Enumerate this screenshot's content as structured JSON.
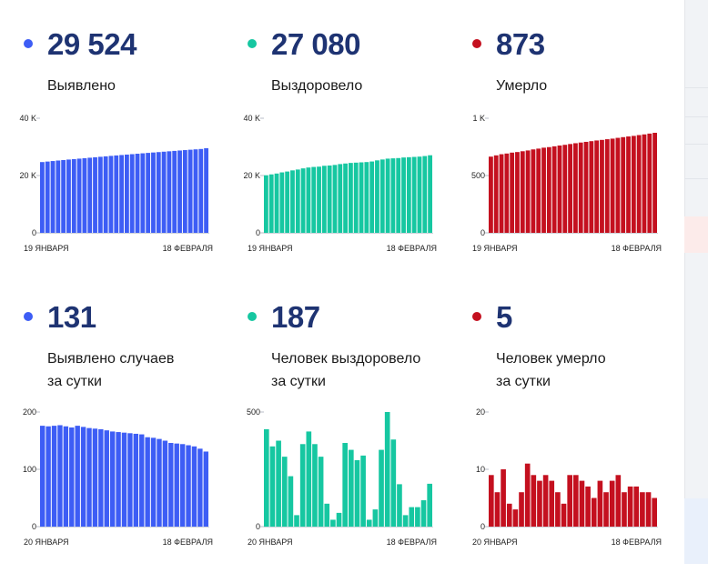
{
  "colors": {
    "blue": "#3d5df5",
    "teal": "#16c7a1",
    "red": "#c4101f",
    "number": "#1e3372"
  },
  "tiles": [
    {
      "value": "29 524",
      "label_lines": [
        "Выявлено"
      ],
      "color": "#3d5df5",
      "icon": "blue-dot-icon"
    },
    {
      "value": "27 080",
      "label_lines": [
        "Выздоровело"
      ],
      "color": "#16c7a1",
      "icon": "teal-dot-icon"
    },
    {
      "value": "873",
      "label_lines": [
        "Умерло"
      ],
      "color": "#c4101f",
      "icon": "red-dot-icon"
    },
    {
      "value": "131",
      "label_lines": [
        "Выявлено случаев",
        "за сутки"
      ],
      "color": "#3d5df5",
      "icon": "blue-dot-icon"
    },
    {
      "value": "187",
      "label_lines": [
        "Человек выздоровело",
        "за сутки"
      ],
      "color": "#16c7a1",
      "icon": "teal-dot-icon"
    },
    {
      "value": "5",
      "label_lines": [
        "Человек умерло",
        "за сутки"
      ],
      "color": "#c4101f",
      "icon": "red-dot-icon"
    }
  ],
  "chart_data": [
    {
      "type": "bar",
      "color": "#3d5df5",
      "x_start_label": "19 ЯНВАРЯ",
      "x_end_label": "18 ФЕВРАЛЯ",
      "ylim": [
        0,
        40000
      ],
      "yticks": [
        0,
        20000,
        40000
      ],
      "ytick_labels": [
        "0",
        "20 K",
        "40 K"
      ],
      "values": [
        24700,
        24880,
        25060,
        25240,
        25410,
        25580,
        25740,
        25900,
        26060,
        26220,
        26380,
        26540,
        26700,
        26860,
        27010,
        27160,
        27310,
        27460,
        27610,
        27760,
        27900,
        28040,
        28180,
        28320,
        28460,
        28600,
        28740,
        28880,
        29010,
        29140,
        29270,
        29524
      ]
    },
    {
      "type": "bar",
      "color": "#16c7a1",
      "x_start_label": "19 ЯНВАРЯ",
      "x_end_label": "18 ФЕВРАЛЯ",
      "ylim": [
        0,
        40000
      ],
      "yticks": [
        0,
        20000,
        40000
      ],
      "ytick_labels": [
        "0",
        "20 K",
        "40 K"
      ],
      "values": [
        20100,
        20400,
        20700,
        21100,
        21400,
        21800,
        22100,
        22500,
        22800,
        23000,
        23100,
        23400,
        23500,
        23700,
        24000,
        24200,
        24400,
        24500,
        24600,
        24700,
        24900,
        25300,
        25600,
        25900,
        26000,
        26100,
        26300,
        26400,
        26500,
        26600,
        26800,
        27080
      ]
    },
    {
      "type": "bar",
      "color": "#c4101f",
      "x_start_label": "19 ЯНВАРЯ",
      "x_end_label": "18 ФЕВРАЛЯ",
      "ylim": [
        0,
        1000
      ],
      "yticks": [
        0,
        500,
        1000
      ],
      "ytick_labels": [
        "0",
        "500",
        "1 K"
      ],
      "values": [
        665,
        676,
        686,
        692,
        700,
        705,
        712,
        719,
        728,
        735,
        743,
        748,
        755,
        762,
        768,
        775,
        782,
        788,
        794,
        800,
        806,
        811,
        817,
        822,
        829,
        835,
        841,
        846,
        853,
        859,
        866,
        873
      ]
    },
    {
      "type": "bar",
      "color": "#3d5df5",
      "x_start_label": "20 ЯНВАРЯ",
      "x_end_label": "18 ФЕВРАЛЯ",
      "ylim": [
        0,
        200
      ],
      "yticks": [
        0,
        100,
        200
      ],
      "ytick_labels": [
        "0",
        "100",
        "200"
      ],
      "values": [
        176,
        175,
        176,
        177,
        175,
        173,
        176,
        174,
        172,
        171,
        170,
        168,
        166,
        165,
        164,
        163,
        162,
        161,
        156,
        155,
        153,
        150,
        146,
        145,
        144,
        142,
        140,
        136,
        131
      ]
    },
    {
      "type": "bar",
      "color": "#16c7a1",
      "x_start_label": "20 ЯНВАРЯ",
      "x_end_label": "18 ФЕВРАЛЯ",
      "ylim": [
        0,
        500
      ],
      "yticks": [
        0,
        500
      ],
      "ytick_labels": [
        "0",
        "500"
      ],
      "values": [
        425,
        350,
        375,
        305,
        220,
        50,
        360,
        415,
        360,
        305,
        100,
        30,
        60,
        365,
        335,
        290,
        310,
        30,
        75,
        335,
        500,
        380,
        185,
        50,
        85,
        85,
        115,
        187
      ]
    },
    {
      "type": "bar",
      "color": "#c4101f",
      "x_start_label": "20 ЯНВАРЯ",
      "x_end_label": "18 ФЕВРАЛЯ",
      "ylim": [
        0,
        20
      ],
      "yticks": [
        0,
        10,
        20
      ],
      "ytick_labels": [
        "0",
        "10",
        "20"
      ],
      "values": [
        9,
        6,
        10,
        4,
        3,
        6,
        11,
        9,
        8,
        9,
        8,
        6,
        4,
        9,
        9,
        8,
        7,
        5,
        8,
        6,
        8,
        9,
        6,
        7,
        7,
        6,
        6,
        5
      ]
    }
  ]
}
